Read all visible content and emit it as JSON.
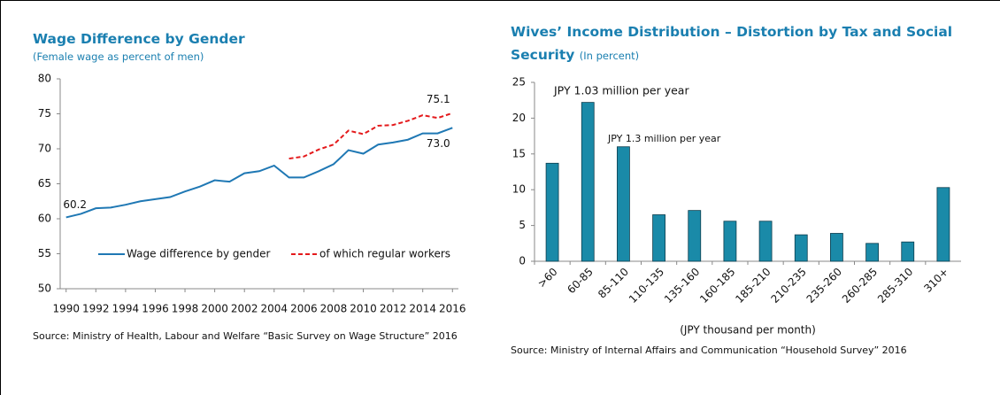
{
  "chart_data": [
    {
      "type": "line",
      "title": "Wage Difference by Gender",
      "subtitle": "(Female wage as percent of men)",
      "source": "Source: Ministry of Health, Labour and Welfare “Basic Survey on Wage Structure” 2016",
      "x": [
        1990,
        1991,
        1992,
        1993,
        1994,
        1995,
        1996,
        1997,
        1998,
        1999,
        2000,
        2001,
        2002,
        2003,
        2004,
        2005,
        2006,
        2007,
        2008,
        2009,
        2010,
        2011,
        2012,
        2013,
        2014,
        2015,
        2016
      ],
      "series": [
        {
          "name": "Wage difference by gender",
          "color": "#1f78b4",
          "dashed": false,
          "values": [
            60.2,
            60.7,
            61.5,
            61.6,
            62.0,
            62.5,
            62.8,
            63.1,
            63.9,
            64.6,
            65.5,
            65.3,
            66.5,
            66.8,
            67.6,
            65.9,
            65.9,
            66.8,
            67.8,
            69.8,
            69.3,
            70.6,
            70.9,
            71.3,
            72.2,
            72.2,
            73.0
          ],
          "value_labels": [
            "60.2",
            null,
            null,
            null,
            null,
            null,
            null,
            null,
            null,
            null,
            null,
            null,
            null,
            null,
            null,
            null,
            null,
            null,
            null,
            null,
            null,
            null,
            null,
            null,
            null,
            null,
            "73.0"
          ]
        },
        {
          "name": "of which regular workers",
          "color": "#e41a1c",
          "dashed": true,
          "values": [
            null,
            null,
            null,
            null,
            null,
            null,
            null,
            null,
            null,
            null,
            null,
            null,
            null,
            null,
            null,
            68.6,
            68.9,
            69.9,
            70.6,
            72.6,
            72.1,
            73.3,
            73.4,
            74.0,
            74.8,
            74.4,
            75.1
          ],
          "value_labels": [
            null,
            null,
            null,
            null,
            null,
            null,
            null,
            null,
            null,
            null,
            null,
            null,
            null,
            null,
            null,
            null,
            null,
            null,
            null,
            null,
            null,
            null,
            null,
            null,
            null,
            null,
            "75.1"
          ]
        }
      ],
      "xlim": [
        1989.6,
        2016.4
      ],
      "xticks": [
        1990,
        1992,
        1994,
        1996,
        1998,
        2000,
        2002,
        2004,
        2006,
        2008,
        2010,
        2012,
        2014,
        2016
      ],
      "ylim": [
        50,
        80
      ],
      "yticks": [
        50,
        55,
        60,
        65,
        70,
        75,
        80
      ],
      "legend": "bottom"
    },
    {
      "type": "bar",
      "title": "Wives’ Income Distribution – Distortion by Tax and Social Security",
      "subtitle": "(In percent)",
      "x_label": "(JPY thousand per month)",
      "source": "Source: Ministry of Internal Affairs and Communication “Household Survey” 2016",
      "annotations": [
        "JPY 1.03 million per year",
        "JPY 1.3 million per year"
      ],
      "categories": [
        ">60",
        "60-85",
        "85-110",
        "110-135",
        "135-160",
        "160-185",
        "185-210",
        "210-235",
        "235-260",
        "260-285",
        "285-310",
        "310+"
      ],
      "values": [
        13.7,
        22.2,
        16.0,
        6.5,
        7.1,
        5.6,
        5.6,
        3.7,
        3.9,
        2.5,
        2.7,
        10.3
      ],
      "color": "#1a8aa8",
      "ylim": [
        0,
        25
      ],
      "yticks": [
        0,
        5,
        10,
        15,
        20,
        25
      ]
    }
  ]
}
